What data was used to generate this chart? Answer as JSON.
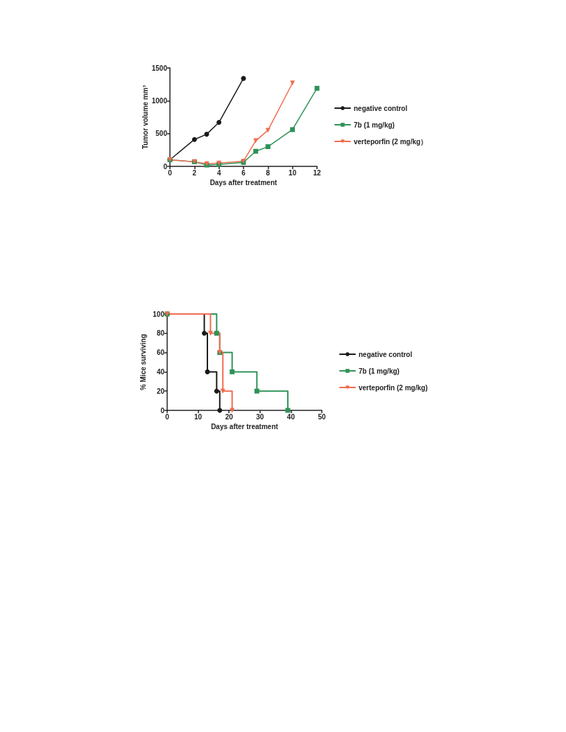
{
  "chart_data": [
    {
      "type": "line",
      "xlabel": "Days after treatment",
      "ylabel": "Tumor volume mm³",
      "xlim": [
        0,
        12
      ],
      "xticks": [
        0,
        2,
        4,
        6,
        8,
        10,
        12
      ],
      "ylim": [
        0,
        1500
      ],
      "yticks": [
        0,
        500,
        1000,
        1500
      ],
      "legend": "right",
      "grid": false,
      "series": [
        {
          "name": "negative control",
          "color": "#1a1a1a",
          "marker": "circle",
          "x": [
            0,
            2,
            3,
            4,
            6
          ],
          "values": [
            100,
            410,
            490,
            670,
            1340
          ]
        },
        {
          "name": "7b (1 mg/kg)",
          "color": "#2e9257",
          "marker": "square",
          "x": [
            0,
            2,
            3,
            4,
            6,
            7,
            8,
            10,
            12
          ],
          "values": [
            100,
            70,
            20,
            30,
            60,
            230,
            300,
            560,
            1190
          ]
        },
        {
          "name": "verteporfin (2 mg/kg）",
          "color": "#f26b4f",
          "marker": "triangle",
          "x": [
            0,
            2,
            3,
            4,
            6,
            7,
            8,
            10
          ],
          "values": [
            100,
            70,
            40,
            50,
            80,
            390,
            550,
            1270
          ]
        }
      ]
    },
    {
      "type": "step",
      "xlabel": "Days after treatment",
      "ylabel": "% Mice surviving",
      "xlim": [
        0,
        50
      ],
      "xticks": [
        0,
        10,
        20,
        30,
        40,
        50
      ],
      "ylim": [
        0,
        100
      ],
      "yticks": [
        0,
        20,
        40,
        60,
        80,
        100
      ],
      "legend": "right",
      "grid": false,
      "series": [
        {
          "name": "negative control",
          "color": "#1a1a1a",
          "marker": "circle",
          "x": [
            0,
            12,
            13,
            16,
            17
          ],
          "values": [
            100,
            80,
            40,
            20,
            0
          ]
        },
        {
          "name": "7b (1 mg/kg)",
          "color": "#2e9257",
          "marker": "square",
          "x": [
            0,
            16,
            17,
            21,
            29,
            39
          ],
          "values": [
            100,
            80,
            60,
            40,
            20,
            0
          ]
        },
        {
          "name": "verteporfin (2 mg/kg)",
          "color": "#f26b4f",
          "marker": "triangle",
          "x": [
            0,
            14,
            17,
            18,
            21
          ],
          "values": [
            100,
            80,
            60,
            20,
            0
          ]
        }
      ]
    }
  ]
}
